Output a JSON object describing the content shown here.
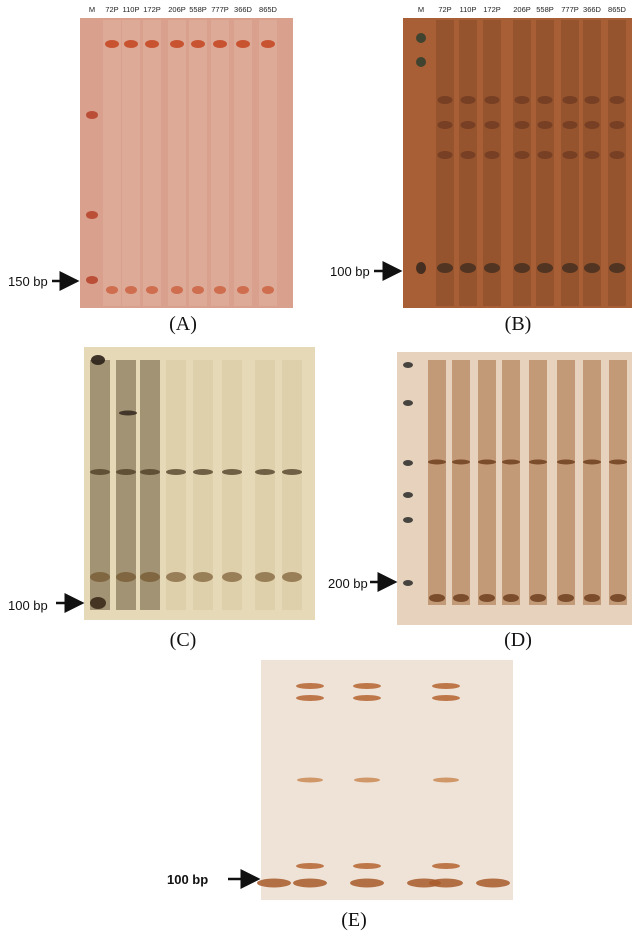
{
  "panels": [
    {
      "label": "(A)",
      "lanes": [
        "M",
        "72P",
        "110P",
        "172P",
        "206P",
        "558P",
        "777P",
        "366D",
        "865D"
      ],
      "marker": "150 bp"
    },
    {
      "label": "(B)",
      "lanes": [
        "M",
        "72P",
        "110P",
        "172P",
        "206P",
        "558P",
        "777P",
        "366D",
        "865D"
      ],
      "marker": "100 bp"
    },
    {
      "label": "(C)",
      "marker": "100 bp"
    },
    {
      "label": "(D)",
      "marker": "200 bp"
    },
    {
      "label": "(E)",
      "marker": "100 bp"
    }
  ]
}
